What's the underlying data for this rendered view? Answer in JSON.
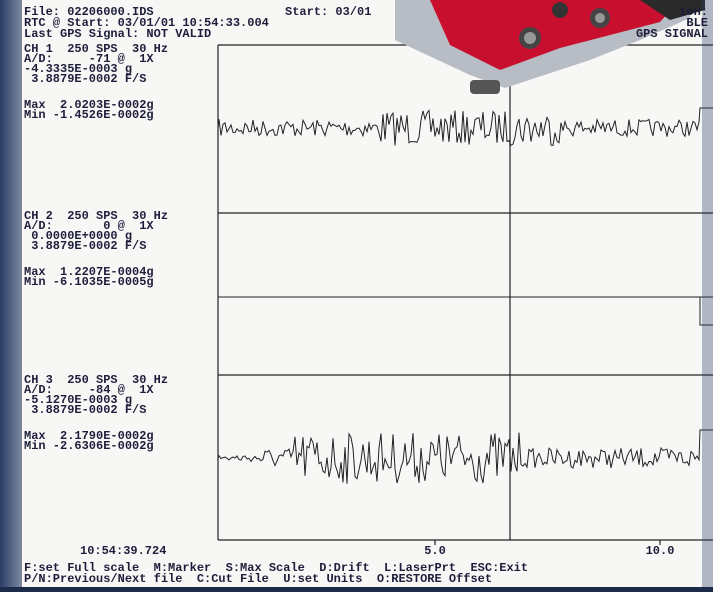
{
  "header": {
    "file": "File: 02206000.IDS",
    "start": "Start: 03/01",
    "rtc": "RTC @ Start: 03/01/01 10:54:33.004",
    "gps": "Last GPS Signal: NOT VALID",
    "right_1": "ion:",
    "right_2": "BLE",
    "right_3": "GPS SIGNAL"
  },
  "channels": [
    {
      "lines": [
        "CH 1  250 SPS  30 Hz",
        "A/D:     -71 @  1X",
        "-4.3335E-0003 g",
        " 3.8879E-0002 F/S"
      ],
      "max": "Max  2.0203E-0002g",
      "min": "Min -1.4526E-0002g"
    },
    {
      "lines": [
        "CH 2  250 SPS  30 Hz",
        "A/D:       0 @  1X",
        " 0.0000E+0000 g",
        " 3.8879E-0002 F/S"
      ],
      "max": "Max  1.2207E-0004g",
      "min": "Min -6.1035E-0005g"
    },
    {
      "lines": [
        "CH 3  250 SPS  30 Hz",
        "A/D:     -84 @  1X",
        "-5.1270E-0003 g",
        " 3.8879E-0002 F/S"
      ],
      "max": "Max  2.1790E-0002g",
      "min": "Min -2.6306E-0002g"
    }
  ],
  "footer": {
    "time": "10:54:39.724",
    "axis_labels": [
      "5.0",
      "10.0"
    ],
    "help_1": "F:set Full scale  M:Marker  S:Max Scale  D:Drift  L:LaserPrt  ESC:Exit",
    "help_2": "P/N:Previous/Next file  C:Cut File  U:set Units  O:RESTORE Offset"
  }
}
